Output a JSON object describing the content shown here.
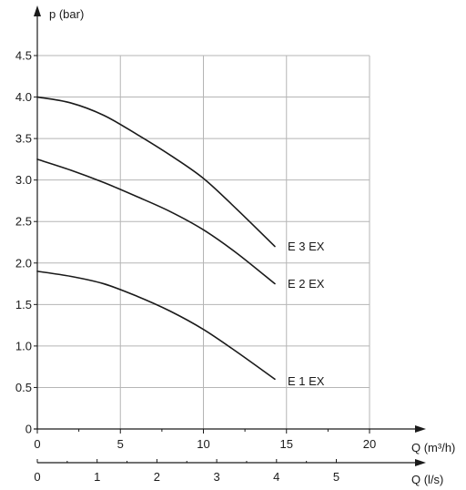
{
  "chart_data": {
    "type": "line",
    "title": "",
    "ylabel": "p (bar)",
    "xlabel": "Q (m³/h)",
    "x2label": "Q (l/s)",
    "ylim": [
      0,
      4.5
    ],
    "xlim": [
      0,
      20
    ],
    "x2lim": [
      0,
      5.5556
    ],
    "yticks": [
      "0",
      "0.5",
      "1.0",
      "1.5",
      "2.0",
      "2.5",
      "3.0",
      "3.5",
      "4.0",
      "4.5"
    ],
    "xticks": [
      "0",
      "5",
      "10",
      "15",
      "20"
    ],
    "x2ticks": [
      "0",
      "1",
      "2",
      "3",
      "4",
      "5"
    ],
    "grid": true,
    "series": [
      {
        "name": "E 3 EX",
        "x": [
          0,
          2,
          4,
          6,
          8,
          10,
          12,
          14.3
        ],
        "y": [
          4.0,
          3.93,
          3.78,
          3.55,
          3.3,
          3.02,
          2.65,
          2.2
        ]
      },
      {
        "name": "E 2 EX",
        "x": [
          0,
          2,
          4,
          6,
          8,
          10,
          12,
          14.3
        ],
        "y": [
          3.25,
          3.12,
          2.97,
          2.8,
          2.62,
          2.4,
          2.12,
          1.75
        ]
      },
      {
        "name": "E 1 EX",
        "x": [
          0,
          2,
          4,
          6,
          8,
          10,
          12,
          14.3
        ],
        "y": [
          1.9,
          1.84,
          1.75,
          1.6,
          1.42,
          1.2,
          0.93,
          0.6
        ]
      }
    ]
  },
  "colors": {
    "grid": "#b5b5b5",
    "axis": "#1a1a1a",
    "curve": "#1a1a1a",
    "background": "#ffffff"
  }
}
